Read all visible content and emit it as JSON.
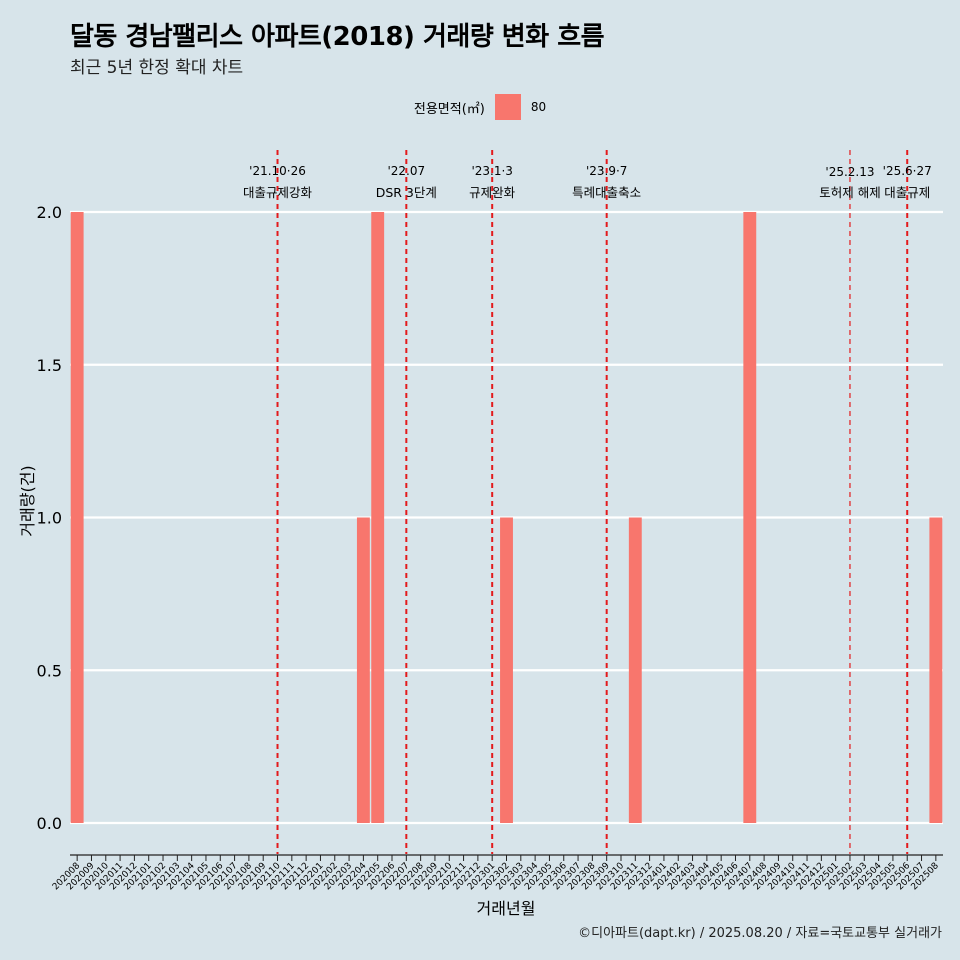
{
  "header": {
    "title": "달동 경남팰리스 아파트(2018) 거래량 변화 흐름",
    "subtitle": "최근 5년 한정 확대 차트"
  },
  "legend": {
    "title": "전용면적(㎡)",
    "items": [
      {
        "label": "80",
        "color": "#f8766d"
      }
    ]
  },
  "caption": "©디아파트(dapt.kr) / 2025.08.20 / 자료=국토교통부 실거래가",
  "chart_data": {
    "type": "bar",
    "xlabel": "거래년월",
    "ylabel": "거래량(건)",
    "ylim": [
      0,
      2
    ],
    "yticks": [
      "0.0",
      "0.5",
      "1.0",
      "1.5",
      "2.0"
    ],
    "ytick_values": [
      0,
      0.5,
      1,
      1.5,
      2
    ],
    "categories": [
      "202008",
      "202009",
      "202010",
      "202011",
      "202012",
      "202101",
      "202102",
      "202103",
      "202104",
      "202105",
      "202106",
      "202107",
      "202108",
      "202109",
      "202110",
      "202111",
      "202112",
      "202201",
      "202202",
      "202203",
      "202204",
      "202205",
      "202206",
      "202207",
      "202208",
      "202209",
      "202210",
      "202211",
      "202212",
      "202301",
      "202302",
      "202303",
      "202304",
      "202305",
      "202306",
      "202307",
      "202308",
      "202309",
      "202310",
      "202311",
      "202312",
      "202401",
      "202402",
      "202403",
      "202404",
      "202405",
      "202406",
      "202407",
      "202408",
      "202409",
      "202410",
      "202411",
      "202412",
      "202501",
      "202502",
      "202503",
      "202504",
      "202505",
      "202506",
      "202507",
      "202508"
    ],
    "series": [
      {
        "name": "80",
        "color": "#f8766d",
        "values": [
          2,
          0,
          0,
          0,
          0,
          0,
          0,
          0,
          0,
          0,
          0,
          0,
          0,
          0,
          0,
          0,
          0,
          0,
          0,
          0,
          1,
          2,
          0,
          0,
          0,
          0,
          0,
          0,
          0,
          0,
          1,
          0,
          0,
          0,
          0,
          0,
          0,
          0,
          0,
          1,
          0,
          0,
          0,
          0,
          0,
          0,
          0,
          2,
          0,
          0,
          0,
          0,
          0,
          0,
          0,
          0,
          0,
          0,
          0,
          0,
          1
        ]
      }
    ],
    "grid": true,
    "legend_position": "top",
    "annotations": [
      {
        "date": "'21.10·26",
        "label": "대출규제강화",
        "x": "202110"
      },
      {
        "date": "'22.07",
        "label": "DSR 3단계",
        "x": "202207"
      },
      {
        "date": "'23.1·3",
        "label": "규제완화",
        "x": "202301"
      },
      {
        "date": "'23.9·7",
        "label": "특례대출축소",
        "x": "202309"
      },
      {
        "date": "'25.2.13",
        "label": "토허제 해제",
        "x": "202502"
      },
      {
        "date": "'25.6·27",
        "label": "대출규제",
        "x": "202506"
      }
    ],
    "annotation_color": "#e31a1c"
  }
}
